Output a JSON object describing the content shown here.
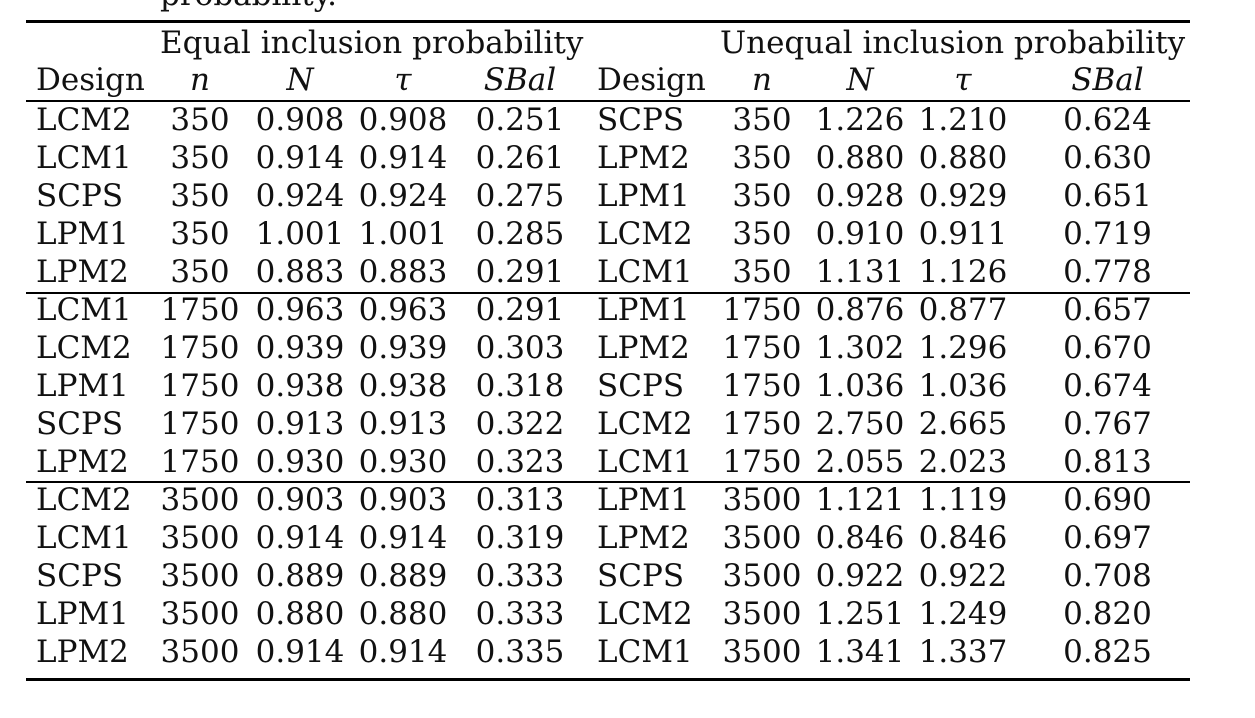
{
  "caption_fragment": "probability.",
  "headers": {
    "group_left": "Equal inclusion probability",
    "group_right": "Unequal inclusion probability",
    "columns": [
      "Design",
      "n",
      "N",
      "τ",
      "SBal",
      "Design",
      "n",
      "N",
      "τ",
      "SBal"
    ]
  },
  "rows": [
    [
      "LCM2",
      "350",
      "0.908",
      "0.908",
      "0.251",
      "SCPS",
      "350",
      "1.226",
      "1.210",
      "0.624"
    ],
    [
      "LCM1",
      "350",
      "0.914",
      "0.914",
      "0.261",
      "LPM2",
      "350",
      "0.880",
      "0.880",
      "0.630"
    ],
    [
      "SCPS",
      "350",
      "0.924",
      "0.924",
      "0.275",
      "LPM1",
      "350",
      "0.928",
      "0.929",
      "0.651"
    ],
    [
      "LPM1",
      "350",
      "1.001",
      "1.001",
      "0.285",
      "LCM2",
      "350",
      "0.910",
      "0.911",
      "0.719"
    ],
    [
      "LPM2",
      "350",
      "0.883",
      "0.883",
      "0.291",
      "LCM1",
      "350",
      "1.131",
      "1.126",
      "0.778"
    ],
    [
      "LCM1",
      "1750",
      "0.963",
      "0.963",
      "0.291",
      "LPM1",
      "1750",
      "0.876",
      "0.877",
      "0.657"
    ],
    [
      "LCM2",
      "1750",
      "0.939",
      "0.939",
      "0.303",
      "LPM2",
      "1750",
      "1.302",
      "1.296",
      "0.670"
    ],
    [
      "LPM1",
      "1750",
      "0.938",
      "0.938",
      "0.318",
      "SCPS",
      "1750",
      "1.036",
      "1.036",
      "0.674"
    ],
    [
      "SCPS",
      "1750",
      "0.913",
      "0.913",
      "0.322",
      "LCM2",
      "1750",
      "2.750",
      "2.665",
      "0.767"
    ],
    [
      "LPM2",
      "1750",
      "0.930",
      "0.930",
      "0.323",
      "LCM1",
      "1750",
      "2.055",
      "2.023",
      "0.813"
    ],
    [
      "LCM2",
      "3500",
      "0.903",
      "0.903",
      "0.313",
      "LPM1",
      "3500",
      "1.121",
      "1.119",
      "0.690"
    ],
    [
      "LCM1",
      "3500",
      "0.914",
      "0.914",
      "0.319",
      "LPM2",
      "3500",
      "0.846",
      "0.846",
      "0.697"
    ],
    [
      "SCPS",
      "3500",
      "0.889",
      "0.889",
      "0.333",
      "SCPS",
      "3500",
      "0.922",
      "0.922",
      "0.708"
    ],
    [
      "LPM1",
      "3500",
      "0.880",
      "0.880",
      "0.333",
      "LCM2",
      "3500",
      "1.251",
      "1.249",
      "0.820"
    ],
    [
      "LPM2",
      "3500",
      "0.914",
      "0.914",
      "0.335",
      "LCM1",
      "3500",
      "1.341",
      "1.337",
      "0.825"
    ]
  ]
}
